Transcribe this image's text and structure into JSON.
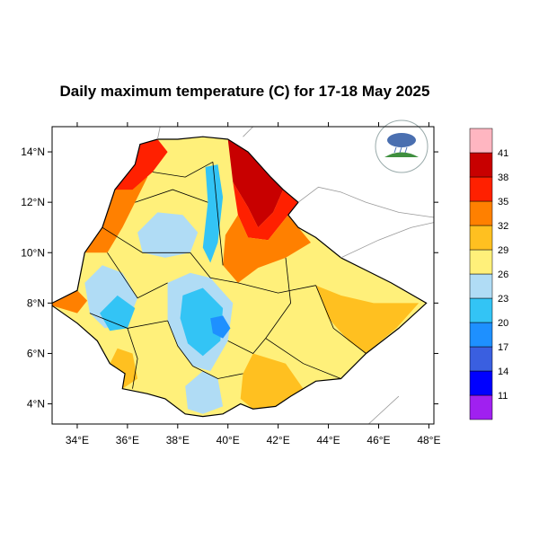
{
  "title": "Daily maximum temperature (C) for 17-18 May 2025",
  "map": {
    "lon_min": 33,
    "lon_max": 48.2,
    "lat_min": 3.2,
    "lat_max": 15,
    "x_ticks": [
      {
        "value": 34,
        "label": "34°E"
      },
      {
        "value": 36,
        "label": "36°E"
      },
      {
        "value": 38,
        "label": "38°E"
      },
      {
        "value": 40,
        "label": "40°E"
      },
      {
        "value": 42,
        "label": "42°E"
      },
      {
        "value": 44,
        "label": "44°E"
      },
      {
        "value": 46,
        "label": "46°E"
      },
      {
        "value": 48,
        "label": "48°E"
      }
    ],
    "y_ticks": [
      {
        "value": 4,
        "label": "4°N"
      },
      {
        "value": 6,
        "label": "6°N"
      },
      {
        "value": 8,
        "label": "8°N"
      },
      {
        "value": 10,
        "label": "10°N"
      },
      {
        "value": 12,
        "label": "12°N"
      },
      {
        "value": 14,
        "label": "14°N"
      }
    ]
  },
  "colorbar": {
    "bins": [
      {
        "color": "#a020f0"
      },
      {
        "color": "#0000ff"
      },
      {
        "color": "#3a5fe0"
      },
      {
        "color": "#1e90ff"
      },
      {
        "color": "#33c4f5"
      },
      {
        "color": "#b0dcf5"
      },
      {
        "color": "#fff07a"
      },
      {
        "color": "#ffc020"
      },
      {
        "color": "#ff8000"
      },
      {
        "color": "#ff2000"
      },
      {
        "color": "#c80000"
      },
      {
        "color": "#ffb6c1"
      }
    ],
    "labels": [
      "11",
      "14",
      "17",
      "20",
      "23",
      "26",
      "29",
      "32",
      "35",
      "38",
      "41"
    ]
  },
  "regions": [
    {
      "name": "ethiopia-base",
      "color": "#fff07a",
      "points": [
        [
          33.0,
          8.0
        ],
        [
          34.0,
          8.5
        ],
        [
          34.3,
          10.0
        ],
        [
          35.0,
          11.0
        ],
        [
          35.5,
          12.5
        ],
        [
          36.3,
          13.5
        ],
        [
          36.5,
          14.3
        ],
        [
          37.2,
          14.5
        ],
        [
          38.0,
          14.5
        ],
        [
          39.0,
          14.6
        ],
        [
          40.0,
          14.5
        ],
        [
          40.8,
          14.0
        ],
        [
          41.7,
          13.0
        ],
        [
          42.2,
          12.5
        ],
        [
          42.8,
          12.0
        ],
        [
          42.4,
          11.5
        ],
        [
          42.8,
          11.0
        ],
        [
          43.5,
          10.6
        ],
        [
          44.5,
          9.8
        ],
        [
          45.5,
          9.3
        ],
        [
          46.5,
          8.8
        ],
        [
          47.9,
          8.0
        ],
        [
          46.8,
          7.0
        ],
        [
          45.5,
          6.0
        ],
        [
          44.5,
          5.0
        ],
        [
          43.5,
          4.9
        ],
        [
          42.5,
          4.3
        ],
        [
          41.9,
          3.9
        ],
        [
          41.0,
          3.8
        ],
        [
          40.5,
          4.0
        ],
        [
          39.8,
          3.6
        ],
        [
          39.0,
          3.5
        ],
        [
          38.3,
          3.6
        ],
        [
          37.5,
          4.2
        ],
        [
          36.8,
          4.4
        ],
        [
          35.8,
          4.6
        ],
        [
          35.9,
          5.2
        ],
        [
          35.3,
          5.6
        ],
        [
          34.8,
          6.5
        ],
        [
          34.0,
          7.2
        ],
        [
          33.0,
          7.9
        ]
      ]
    },
    {
      "name": "afar-hot",
      "color": "#c80000",
      "points": [
        [
          40.0,
          14.5
        ],
        [
          40.8,
          14.0
        ],
        [
          41.7,
          13.0
        ],
        [
          42.2,
          12.5
        ],
        [
          41.8,
          11.6
        ],
        [
          41.2,
          11.0
        ],
        [
          40.8,
          11.8
        ],
        [
          40.2,
          12.8
        ]
      ]
    },
    {
      "name": "afar-red",
      "color": "#ff2000",
      "points": [
        [
          40.2,
          12.8
        ],
        [
          40.8,
          11.8
        ],
        [
          41.2,
          11.0
        ],
        [
          41.8,
          11.6
        ],
        [
          42.2,
          12.5
        ],
        [
          42.8,
          12.0
        ],
        [
          42.4,
          11.5
        ],
        [
          41.6,
          10.5
        ],
        [
          40.8,
          10.6
        ],
        [
          40.4,
          11.5
        ]
      ]
    },
    {
      "name": "afar-orange",
      "color": "#ff8000",
      "points": [
        [
          40.4,
          11.5
        ],
        [
          40.8,
          10.6
        ],
        [
          41.6,
          10.5
        ],
        [
          42.4,
          11.5
        ],
        [
          42.8,
          11.0
        ],
        [
          43.3,
          10.4
        ],
        [
          42.3,
          9.8
        ],
        [
          41.2,
          9.4
        ],
        [
          40.4,
          8.8
        ],
        [
          39.8,
          9.5
        ],
        [
          39.9,
          10.7
        ]
      ]
    },
    {
      "name": "west-orange",
      "color": "#ff8000",
      "points": [
        [
          34.3,
          10.0
        ],
        [
          35.0,
          11.0
        ],
        [
          35.5,
          12.5
        ],
        [
          36.3,
          13.5
        ],
        [
          36.8,
          13.0
        ],
        [
          36.3,
          12.0
        ],
        [
          35.8,
          11.0
        ],
        [
          35.2,
          10.0
        ]
      ]
    },
    {
      "name": "west-red",
      "color": "#ff2000",
      "points": [
        [
          35.5,
          12.5
        ],
        [
          36.3,
          13.5
        ],
        [
          36.5,
          14.3
        ],
        [
          37.2,
          14.5
        ],
        [
          37.6,
          14.0
        ],
        [
          37.0,
          13.2
        ],
        [
          36.2,
          12.5
        ]
      ]
    },
    {
      "name": "gambela-orange",
      "color": "#ff8000",
      "points": [
        [
          33.0,
          8.0
        ],
        [
          34.0,
          8.5
        ],
        [
          34.4,
          8.1
        ],
        [
          34.0,
          7.6
        ],
        [
          33.0,
          7.9
        ]
      ]
    },
    {
      "name": "highland-light-nw",
      "color": "#b0dcf5",
      "points": [
        [
          36.4,
          10.8
        ],
        [
          37.2,
          11.6
        ],
        [
          38.2,
          11.5
        ],
        [
          38.8,
          10.8
        ],
        [
          38.5,
          10.0
        ],
        [
          37.5,
          9.8
        ],
        [
          36.6,
          10.0
        ]
      ]
    },
    {
      "name": "western-cool",
      "color": "#b0dcf5",
      "points": [
        [
          34.3,
          8.8
        ],
        [
          35.0,
          9.5
        ],
        [
          35.8,
          9.2
        ],
        [
          36.4,
          8.2
        ],
        [
          36.0,
          7.2
        ],
        [
          35.1,
          7.0
        ],
        [
          34.5,
          7.6
        ]
      ]
    },
    {
      "name": "western-cold",
      "color": "#33c4f5",
      "points": [
        [
          34.9,
          7.6
        ],
        [
          35.6,
          8.3
        ],
        [
          36.3,
          7.8
        ],
        [
          36.0,
          7.0
        ],
        [
          35.3,
          6.9
        ]
      ]
    },
    {
      "name": "rift-highlands",
      "color": "#b0dcf5",
      "points": [
        [
          37.6,
          8.8
        ],
        [
          38.5,
          9.2
        ],
        [
          39.3,
          9.0
        ],
        [
          40.2,
          8.0
        ],
        [
          40.0,
          6.5
        ],
        [
          39.3,
          5.3
        ],
        [
          38.6,
          5.5
        ],
        [
          38.0,
          6.3
        ],
        [
          37.6,
          7.3
        ]
      ]
    },
    {
      "name": "rift-cold",
      "color": "#33c4f5",
      "points": [
        [
          38.2,
          8.3
        ],
        [
          39.0,
          8.6
        ],
        [
          39.8,
          7.8
        ],
        [
          39.7,
          6.5
        ],
        [
          39.0,
          5.9
        ],
        [
          38.4,
          6.4
        ],
        [
          38.1,
          7.4
        ]
      ]
    },
    {
      "name": "bale-colder",
      "color": "#1e90ff",
      "points": [
        [
          39.3,
          7.4
        ],
        [
          39.8,
          7.5
        ],
        [
          40.1,
          7.0
        ],
        [
          39.8,
          6.6
        ],
        [
          39.4,
          6.8
        ]
      ]
    },
    {
      "name": "east-highland-strip",
      "color": "#33c4f5",
      "points": [
        [
          39.1,
          13.4
        ],
        [
          39.6,
          13.5
        ],
        [
          39.8,
          12.2
        ],
        [
          39.6,
          10.4
        ],
        [
          39.3,
          9.6
        ],
        [
          39.0,
          10.2
        ],
        [
          39.2,
          12.0
        ]
      ]
    },
    {
      "name": "south-cool",
      "color": "#b0dcf5",
      "points": [
        [
          38.3,
          4.7
        ],
        [
          39.0,
          5.3
        ],
        [
          39.6,
          5.0
        ],
        [
          39.8,
          3.9
        ],
        [
          39.0,
          3.6
        ],
        [
          38.4,
          3.8
        ]
      ]
    },
    {
      "name": "ogaden-orange",
      "color": "#ffc020",
      "points": [
        [
          43.5,
          8.7
        ],
        [
          44.5,
          8.3
        ],
        [
          45.8,
          8.0
        ],
        [
          47.6,
          8.0
        ],
        [
          46.7,
          7.0
        ],
        [
          45.5,
          6.0
        ],
        [
          44.8,
          6.5
        ],
        [
          44.0,
          7.4
        ]
      ]
    },
    {
      "name": "south-orange",
      "color": "#ffc020",
      "points": [
        [
          41.0,
          6.0
        ],
        [
          42.3,
          5.6
        ],
        [
          43.0,
          4.6
        ],
        [
          42.5,
          4.3
        ],
        [
          41.9,
          3.9
        ],
        [
          41.0,
          3.8
        ],
        [
          40.5,
          4.2
        ],
        [
          40.6,
          5.2
        ]
      ]
    },
    {
      "name": "southwest-orange",
      "color": "#ffc020",
      "points": [
        [
          35.8,
          4.6
        ],
        [
          35.9,
          5.2
        ],
        [
          35.3,
          5.6
        ],
        [
          35.6,
          6.2
        ],
        [
          36.2,
          6.0
        ],
        [
          36.4,
          5.0
        ]
      ]
    }
  ],
  "boundaries": [
    [
      [
        35.0,
        11.0
      ],
      [
        36.6,
        10.0
      ],
      [
        38.5,
        10.0
      ]
    ],
    [
      [
        36.3,
        12.0
      ],
      [
        37.8,
        12.5
      ],
      [
        39.2,
        12.0
      ]
    ],
    [
      [
        35.2,
        10.0
      ],
      [
        36.4,
        8.2
      ],
      [
        37.6,
        8.8
      ]
    ],
    [
      [
        34.5,
        7.6
      ],
      [
        36.0,
        7.0
      ],
      [
        37.6,
        7.3
      ]
    ],
    [
      [
        36.0,
        7.0
      ],
      [
        36.4,
        5.8
      ],
      [
        36.2,
        4.6
      ]
    ],
    [
      [
        37.6,
        7.3
      ],
      [
        38.0,
        6.3
      ],
      [
        38.6,
        5.5
      ]
    ],
    [
      [
        38.5,
        10.0
      ],
      [
        39.3,
        9.0
      ],
      [
        40.4,
        8.8
      ]
    ],
    [
      [
        40.4,
        8.8
      ],
      [
        42.0,
        8.4
      ],
      [
        43.5,
        8.7
      ]
    ],
    [
      [
        42.3,
        9.8
      ],
      [
        42.5,
        8.0
      ],
      [
        41.5,
        6.6
      ]
    ],
    [
      [
        41.5,
        6.6
      ],
      [
        43.0,
        5.6
      ],
      [
        44.5,
        5.0
      ]
    ],
    [
      [
        43.5,
        8.7
      ],
      [
        44.2,
        7.0
      ],
      [
        45.5,
        6.0
      ]
    ],
    [
      [
        39.8,
        9.5
      ],
      [
        39.6,
        11.5
      ],
      [
        39.4,
        13.6
      ]
    ],
    [
      [
        37.0,
        13.2
      ],
      [
        38.3,
        13.0
      ],
      [
        39.4,
        13.6
      ]
    ],
    [
      [
        40.0,
        6.5
      ],
      [
        41.0,
        6.0
      ],
      [
        41.5,
        6.6
      ]
    ],
    [
      [
        38.6,
        5.5
      ],
      [
        39.6,
        5.0
      ],
      [
        40.6,
        5.2
      ]
    ]
  ],
  "neighbors": [
    [
      [
        37.2,
        14.5
      ],
      [
        37.3,
        15.0
      ]
    ],
    [
      [
        40.6,
        14.6
      ],
      [
        41.0,
        15.0
      ]
    ],
    [
      [
        42.8,
        12.0
      ],
      [
        43.6,
        12.6
      ],
      [
        44.5,
        12.4
      ],
      [
        45.5,
        12.0
      ],
      [
        46.8,
        11.6
      ],
      [
        48.2,
        11.4
      ]
    ],
    [
      [
        44.5,
        9.8
      ],
      [
        46.0,
        10.5
      ],
      [
        47.3,
        11.0
      ],
      [
        48.2,
        11.2
      ]
    ],
    [
      [
        46.8,
        4.3
      ],
      [
        45.6,
        3.2
      ]
    ]
  ]
}
